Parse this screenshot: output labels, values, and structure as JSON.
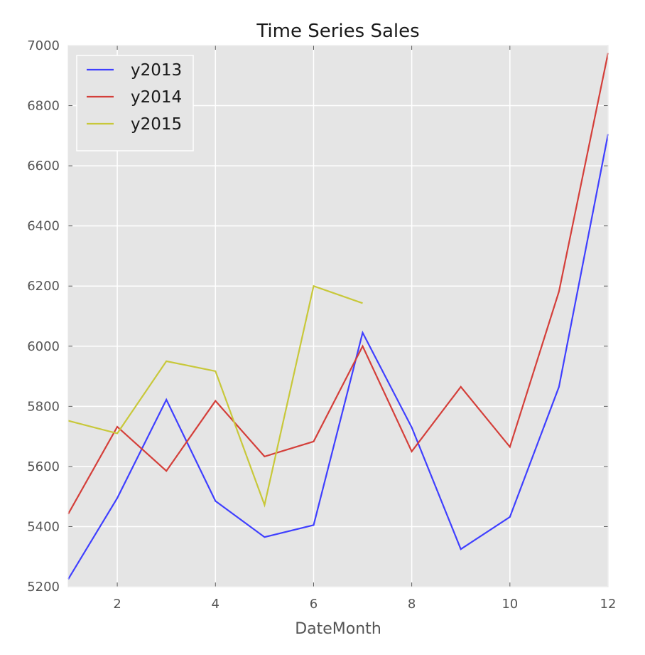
{
  "chart_data": {
    "type": "line",
    "title": "Time Series Sales",
    "xlabel": "DateMonth",
    "ylabel": "",
    "xlim": [
      1,
      12
    ],
    "ylim": [
      5200,
      7000
    ],
    "xticks": [
      2,
      4,
      6,
      8,
      10,
      12
    ],
    "yticks": [
      5200,
      5400,
      5600,
      5800,
      6000,
      6200,
      6400,
      6600,
      6800,
      7000
    ],
    "grid": true,
    "legend_position": "top-left",
    "plot_background": "#e5e5e5",
    "series": [
      {
        "name": "y2013",
        "color": "#3f3fff",
        "x": [
          1,
          2,
          3,
          4,
          5,
          6,
          7,
          8,
          9,
          10,
          11,
          12
        ],
        "y": [
          5225,
          5495,
          5822,
          5485,
          5365,
          5405,
          6045,
          5730,
          5325,
          5432,
          5865,
          6705
        ]
      },
      {
        "name": "y2014",
        "color": "#d43f3a",
        "x": [
          1,
          2,
          3,
          4,
          5,
          6,
          7,
          8,
          9,
          10,
          11,
          12
        ],
        "y": [
          5442,
          5732,
          5585,
          5818,
          5633,
          5683,
          6000,
          5650,
          5865,
          5665,
          6182,
          6975
        ]
      },
      {
        "name": "y2015",
        "color": "#c8c83a",
        "x": [
          1,
          2,
          3,
          4,
          5,
          6,
          7
        ],
        "y": [
          5752,
          5710,
          5950,
          5917,
          5472,
          6200,
          6143
        ]
      }
    ]
  }
}
